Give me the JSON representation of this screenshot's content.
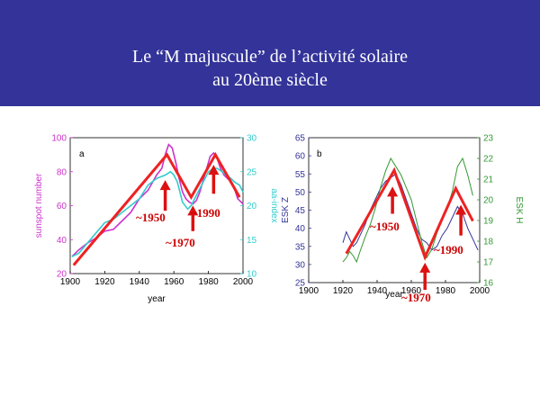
{
  "slide": {
    "title_line1": "Le “M majuscule” de l’activité solaire",
    "title_line2": "au 20ème siècle",
    "banner_color": "#333399"
  },
  "chart_data": [
    {
      "type": "line",
      "panel_label": "a",
      "xlabel": "year",
      "xlim": [
        1900,
        2000
      ],
      "x_ticks": [
        1900,
        1920,
        1940,
        1960,
        1980,
        2000
      ],
      "x_tick_labels": [
        "1900",
        "1920",
        "1940",
        "1960",
        "1980",
        "2000"
      ],
      "left_axis": {
        "label": "sunspot number",
        "color": "#cc33cc",
        "ylim": [
          20,
          100
        ],
        "ticks": [
          20,
          40,
          60,
          80,
          100
        ]
      },
      "right_axis": {
        "label": "aa-index",
        "color": "#33cccc",
        "ylim": [
          10,
          30
        ],
        "ticks": [
          10,
          15,
          20,
          25,
          30
        ]
      },
      "series": [
        {
          "axis": "left",
          "color": "#cc33cc",
          "x": [
            1901,
            1905,
            1910,
            1915,
            1920,
            1925,
            1930,
            1935,
            1940,
            1945,
            1950,
            1953,
            1955,
            1957,
            1959,
            1961,
            1963,
            1965,
            1967,
            1969,
            1971,
            1973,
            1975,
            1977,
            1979,
            1981,
            1983,
            1985,
            1987,
            1989,
            1991,
            1993,
            1995,
            1997,
            1999,
            2000
          ],
          "y": [
            30,
            34,
            38,
            41,
            45,
            46,
            51,
            56,
            64,
            69,
            78,
            82,
            90,
            96,
            94,
            86,
            76,
            68,
            64,
            62,
            61,
            63,
            68,
            75,
            82,
            89,
            91,
            88,
            82,
            78,
            76,
            74,
            70,
            64,
            62,
            61
          ]
        },
        {
          "axis": "right",
          "color": "#33cccc",
          "x": [
            1901,
            1905,
            1910,
            1915,
            1920,
            1925,
            1930,
            1935,
            1940,
            1945,
            1950,
            1955,
            1958,
            1960,
            1962,
            1965,
            1968,
            1970,
            1972,
            1975,
            1978,
            1980,
            1983,
            1985,
            1988,
            1990,
            1993,
            1995,
            1998,
            2000
          ],
          "y": [
            12.5,
            13.0,
            14.5,
            16.0,
            17.5,
            18.0,
            19.0,
            20.0,
            21.0,
            23.0,
            24.0,
            24.5,
            25.0,
            24.5,
            23.5,
            20.5,
            19.5,
            20.0,
            21.0,
            22.5,
            24.0,
            25.0,
            25.5,
            25.5,
            25.0,
            24.5,
            24.0,
            23.5,
            23.0,
            22.0
          ]
        }
      ],
      "m_shape": {
        "color": "#ee2222",
        "axis": "left",
        "x": [
          1902,
          1956,
          1970,
          1984,
          1998
        ],
        "y": [
          25,
          90,
          65,
          90,
          65
        ]
      },
      "annotations": [
        {
          "text": "~1950",
          "arrow_x": 1955,
          "arrow_y_from": 57,
          "arrow_y_to": 74
        },
        {
          "text": "~1970",
          "arrow_x": 1971,
          "arrow_y_from": 45,
          "arrow_y_to": 59
        },
        {
          "text": "~1990",
          "arrow_x": 1983,
          "arrow_y_from": 67,
          "arrow_y_to": 83
        }
      ]
    },
    {
      "type": "line",
      "panel_label": "b",
      "xlabel": "year",
      "xlim": [
        1900,
        2000
      ],
      "x_ticks": [
        1900,
        1920,
        1940,
        1960,
        1980,
        2000
      ],
      "x_tick_labels": [
        "1900",
        "1920",
        "1940",
        "1960",
        "1980",
        "2000"
      ],
      "left_axis": {
        "label": "ESK Z",
        "color": "#333399",
        "ylim": [
          25,
          65
        ],
        "ticks": [
          25,
          30,
          35,
          40,
          45,
          50,
          55,
          60,
          65
        ]
      },
      "right_axis": {
        "label": "ESK H",
        "color": "#339933",
        "ylim": [
          16,
          23
        ],
        "ticks": [
          16,
          17,
          18,
          19,
          20,
          21,
          22,
          23
        ]
      },
      "series": [
        {
          "axis": "left",
          "color": "#333399",
          "x": [
            1920,
            1922,
            1924,
            1926,
            1928,
            1930,
            1933,
            1936,
            1939,
            1942,
            1945,
            1948,
            1951,
            1954,
            1957,
            1960,
            1963,
            1966,
            1969,
            1972,
            1975,
            1978,
            1981,
            1984,
            1987,
            1990,
            1993,
            1996,
            1999
          ],
          "y": [
            36,
            39,
            37,
            35,
            36,
            38,
            41,
            45,
            48,
            51,
            53,
            54,
            55,
            52,
            48,
            44,
            40,
            37,
            36,
            34,
            35,
            38,
            40,
            43,
            46,
            44,
            40,
            37,
            34
          ]
        },
        {
          "axis": "right",
          "color": "#339933",
          "x": [
            1920,
            1922,
            1924,
            1926,
            1928,
            1930,
            1933,
            1936,
            1939,
            1942,
            1945,
            1948,
            1951,
            1954,
            1957,
            1960,
            1963,
            1966,
            1969,
            1972,
            1975,
            1978,
            1981,
            1984,
            1987,
            1990,
            1993,
            1996
          ],
          "y": [
            17.0,
            17.2,
            17.5,
            17.3,
            17.0,
            17.5,
            18.2,
            18.8,
            19.6,
            20.6,
            21.4,
            22.0,
            21.6,
            21.2,
            20.6,
            20.0,
            19.0,
            18.0,
            17.2,
            17.6,
            18.4,
            19.0,
            19.6,
            20.4,
            21.6,
            22.0,
            21.2,
            20.2
          ]
        }
      ],
      "m_shape": {
        "color": "#ee2222",
        "axis": "left",
        "x": [
          1922,
          1950,
          1968,
          1986,
          1996
        ],
        "y": [
          33,
          56,
          32,
          51,
          42
        ]
      },
      "annotations": [
        {
          "text": "~1950",
          "arrow_x": 1949,
          "arrow_y_from": 44,
          "arrow_y_to": 51
        },
        {
          "text": "~1970",
          "arrow_x": 1968,
          "arrow_y_from": 23,
          "arrow_y_to": 30
        },
        {
          "text": "~1990",
          "arrow_x": 1989,
          "arrow_y_from": 38,
          "arrow_y_to": 46
        }
      ]
    }
  ]
}
